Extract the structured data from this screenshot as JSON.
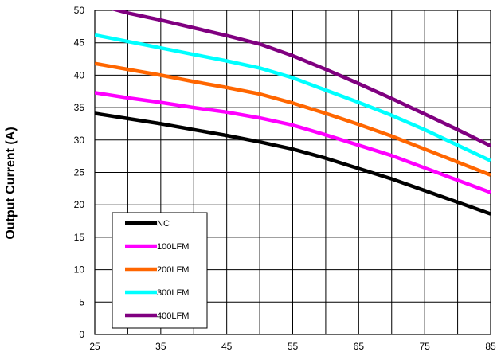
{
  "chart_data": {
    "type": "line",
    "title": "",
    "xlabel": "",
    "ylabel": "Output Current (A)",
    "xlim": [
      25,
      85
    ],
    "ylim": [
      0,
      50
    ],
    "xticks": [
      25,
      35,
      45,
      55,
      65,
      75,
      85
    ],
    "yticks": [
      0,
      5,
      10,
      15,
      20,
      25,
      30,
      35,
      40,
      45,
      50
    ],
    "grid": true,
    "legend_position": "bottom-left",
    "x": [
      25,
      30,
      35,
      40,
      45,
      50,
      55,
      60,
      65,
      70,
      75,
      80,
      85
    ],
    "series": [
      {
        "name": "NC",
        "color": "#000000",
        "values": [
          34.1,
          33.3,
          32.5,
          31.6,
          30.7,
          29.7,
          28.6,
          27.2,
          25.6,
          24.0,
          22.2,
          20.4,
          18.6
        ]
      },
      {
        "name": "100LFM",
        "color": "#ff00ff",
        "values": [
          37.3,
          36.5,
          35.8,
          35.0,
          34.3,
          33.4,
          32.3,
          30.8,
          29.2,
          27.6,
          25.7,
          23.8,
          21.9
        ]
      },
      {
        "name": "200LFM",
        "color": "#ff6600",
        "values": [
          41.8,
          40.9,
          40.0,
          39.0,
          38.1,
          37.1,
          35.7,
          34.1,
          32.4,
          30.6,
          28.6,
          26.6,
          24.6
        ]
      },
      {
        "name": "300LFM",
        "color": "#00ffff",
        "values": [
          46.2,
          45.2,
          44.2,
          43.2,
          42.2,
          41.1,
          39.6,
          37.7,
          35.8,
          33.8,
          31.6,
          29.2,
          26.8
        ]
      },
      {
        "name": "400LFM",
        "color": "#800080",
        "values": [
          51.0,
          49.6,
          48.5,
          47.3,
          46.1,
          44.8,
          43.0,
          40.9,
          38.7,
          36.4,
          34.0,
          31.6,
          29.1
        ]
      }
    ]
  }
}
